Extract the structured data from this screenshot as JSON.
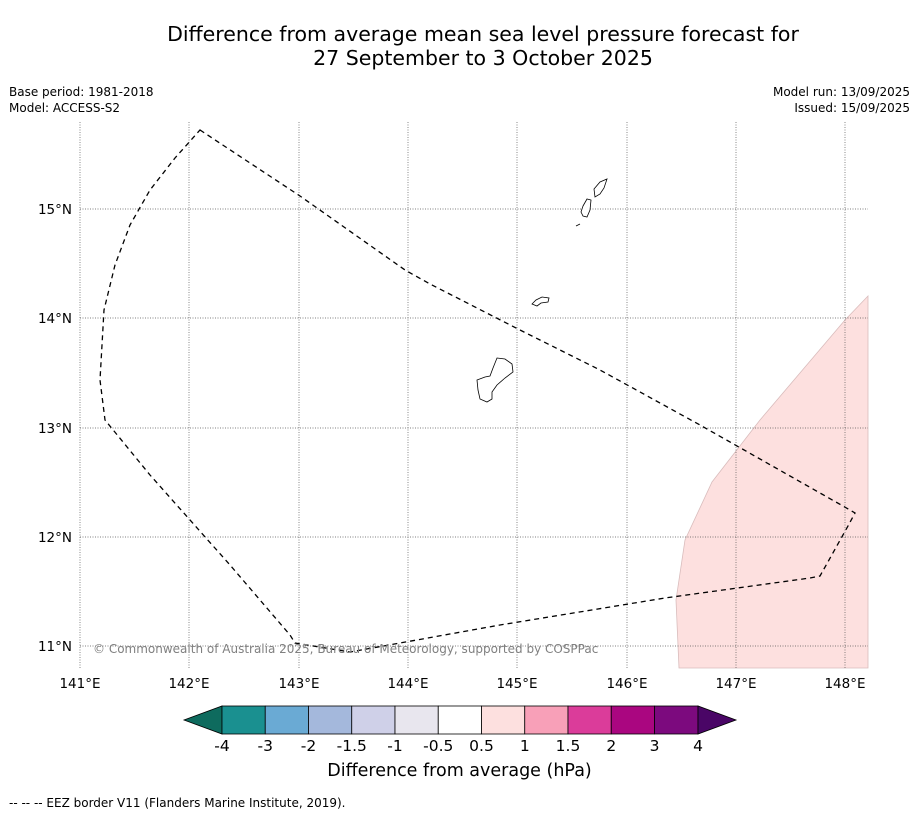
{
  "title": {
    "line1": "Difference from average mean sea level pressure forecast for",
    "line2": "27 September to 3 October 2025"
  },
  "meta": {
    "base_period": "Base period: 1981-2018",
    "model": "Model: ACCESS-S2",
    "model_run": "Model run: 13/09/2025",
    "issued": "Issued: 15/09/2025"
  },
  "map": {
    "lon_ticks": [
      "141°E",
      "142°E",
      "143°E",
      "144°E",
      "145°E",
      "146°E",
      "147°E",
      "148°E"
    ],
    "lat_ticks": [
      "15°N",
      "14°N",
      "13°N",
      "12°N",
      "11°N"
    ],
    "lon_range": [
      141.0,
      148.2
    ],
    "lat_range": [
      10.8,
      15.8
    ],
    "gridlines": true,
    "copyright": "© Commonwealth of Australia 2025, Bureau of Meteorology, supported by COSPPac",
    "anomaly_region": {
      "category": "0.5 to 1",
      "color": "#fde0df",
      "location": "south-east corner"
    },
    "eez_border_style": "dashed"
  },
  "colorbar": {
    "tick_labels": [
      "-4",
      "-3",
      "-2",
      "-1.5",
      "-1",
      "-0.5",
      "0.5",
      "1",
      "1.5",
      "2",
      "3",
      "4"
    ],
    "colors": [
      "#0e6b5e",
      "#1a9090",
      "#6aaad4",
      "#a4b8dc",
      "#cfd0e8",
      "#e8e6ee",
      "#ffffff",
      "#fde0df",
      "#f8a0b8",
      "#db3c9a",
      "#aa0680",
      "#7c0a7e",
      "#4a0666"
    ],
    "label": "Difference from average (hPa)"
  },
  "footer": "--  --  -- EEZ border V11 (Flanders Marine Institute, 2019)."
}
